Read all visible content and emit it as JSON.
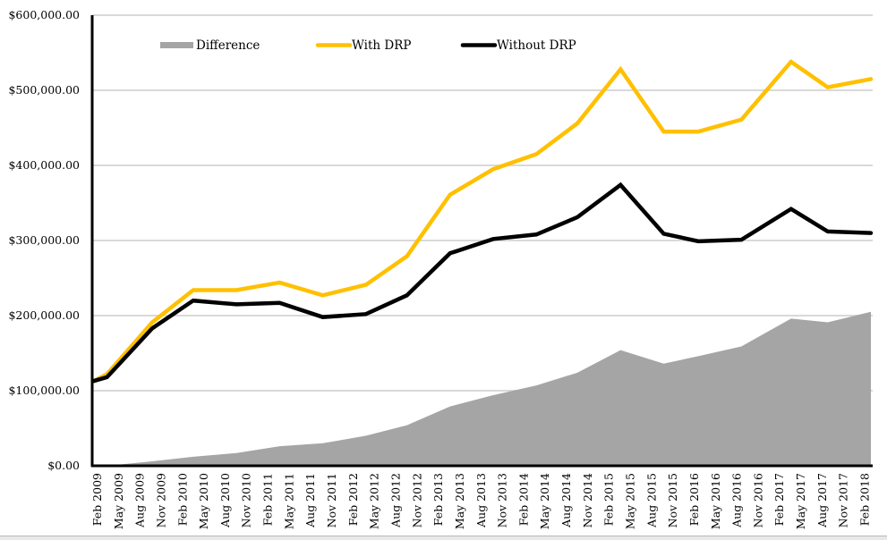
{
  "chart_data": {
    "type": "line",
    "title": "",
    "xlabel": "",
    "ylabel": "",
    "ylim": [
      0,
      600000
    ],
    "y_ticks": [
      0,
      100000,
      200000,
      300000,
      400000,
      500000,
      600000
    ],
    "y_tick_labels": [
      "$0.00",
      "$100,000.00",
      "$200,000.00",
      "$300,000.00",
      "$400,000.00",
      "$500,000.00",
      "$600,000.00"
    ],
    "grid": "horizontal",
    "legend_position": "top-left",
    "categories": [
      "Feb 2009",
      "May 2009",
      "Aug 2009",
      "Nov 2009",
      "Feb 2010",
      "May 2010",
      "Aug 2010",
      "Nov 2010",
      "Feb 2011",
      "May 2011",
      "Aug 2011",
      "Nov 2011",
      "Feb 2012",
      "May 2012",
      "Aug 2012",
      "Nov 2012",
      "Feb 2013",
      "May 2013",
      "Aug 2013",
      "Nov 2013",
      "Feb 2014",
      "May 2014",
      "Aug 2014",
      "Nov 2014",
      "Feb 2015",
      "May 2015",
      "Aug 2015",
      "Nov 2015",
      "Feb 2016",
      "May 2016",
      "Aug 2016",
      "Nov 2016",
      "Feb 2017",
      "May 2017",
      "Aug 2017",
      "Nov 2017",
      "Feb 2018"
    ],
    "x_note": "x values are positions in quarter units from Feb 2009 (0) to Feb 2018 (36)",
    "x": [
      0,
      0.6,
      2.7,
      4.6,
      6.6,
      8.6,
      10.6,
      12.6,
      14.5,
      16.5,
      18.5,
      20.5,
      22.4,
      24.4,
      26.4,
      28.0,
      30.0,
      32.3,
      34.0,
      36.0
    ],
    "series": [
      {
        "name": "Difference",
        "type": "area",
        "color": "#a5a5a5",
        "values": [
          0,
          0,
          6000,
          12000,
          17000,
          26000,
          30000,
          40000,
          54000,
          79000,
          94000,
          107000,
          124000,
          154000,
          136000,
          146000,
          159000,
          196000,
          191000,
          205000
        ]
      },
      {
        "name": "With DRP",
        "type": "line",
        "color": "#ffc000",
        "values": [
          113000,
          122000,
          191000,
          234000,
          234000,
          244000,
          227000,
          241000,
          279000,
          361000,
          395000,
          415000,
          456000,
          528000,
          445000,
          445000,
          461000,
          538000,
          504000,
          515000
        ]
      },
      {
        "name": "Without DRP",
        "type": "line",
        "color": "#000000",
        "values": [
          113000,
          118000,
          183000,
          220000,
          215000,
          217000,
          198000,
          202000,
          227000,
          283000,
          302000,
          308000,
          331000,
          374000,
          309000,
          299000,
          301000,
          342000,
          312000,
          310000
        ]
      }
    ]
  }
}
